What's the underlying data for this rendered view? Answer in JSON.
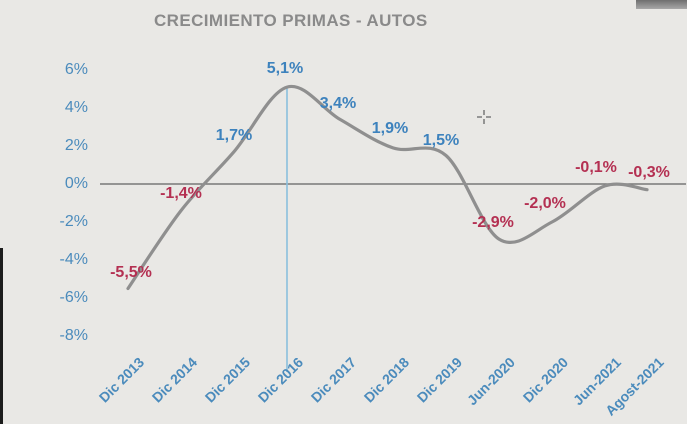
{
  "chart_data": {
    "type": "line",
    "title": "CRECIMIENTO PRIMAS - AUTOS",
    "categories": [
      "Dic 2013",
      "Dic 2014",
      "Dic 2015",
      "Dic 2016",
      "Dic 2017",
      "Dic 2018",
      "Dic 2019",
      "Jun-2020",
      "Dic 2020",
      "Jun-2021",
      "Agost-2021"
    ],
    "values": [
      -5.5,
      -1.4,
      1.7,
      5.1,
      3.4,
      1.9,
      1.5,
      -2.9,
      -2.0,
      -0.1,
      -0.3
    ],
    "point_labels": [
      "-5,5%",
      "-1,4%",
      "1,7%",
      "5,1%",
      "3,4%",
      "1,9%",
      "1,5%",
      "-2,9%",
      "-2,0%",
      "-0,1%",
      "-0,3%"
    ],
    "ytick_labels": [
      "6%",
      "4%",
      "2%",
      "0%",
      "-2%",
      "-4%",
      "-6%",
      "-8%"
    ],
    "yticks": [
      6,
      4,
      2,
      0,
      -2,
      -4,
      -6,
      -8
    ],
    "ylim": [
      -8,
      6
    ],
    "grid": false,
    "legend": "none",
    "highlight_category": "Dic 2016",
    "colors": {
      "line": "#8f8f8f",
      "zero_axis": "#787878",
      "highlight_line": "#8abfdd",
      "positive_label": "#3d82bd",
      "negative_label": "#b43052",
      "axis_text": "#4b8bbc",
      "title_text": "#8a8a8a"
    }
  },
  "cursor": {
    "style": "crosshair"
  }
}
